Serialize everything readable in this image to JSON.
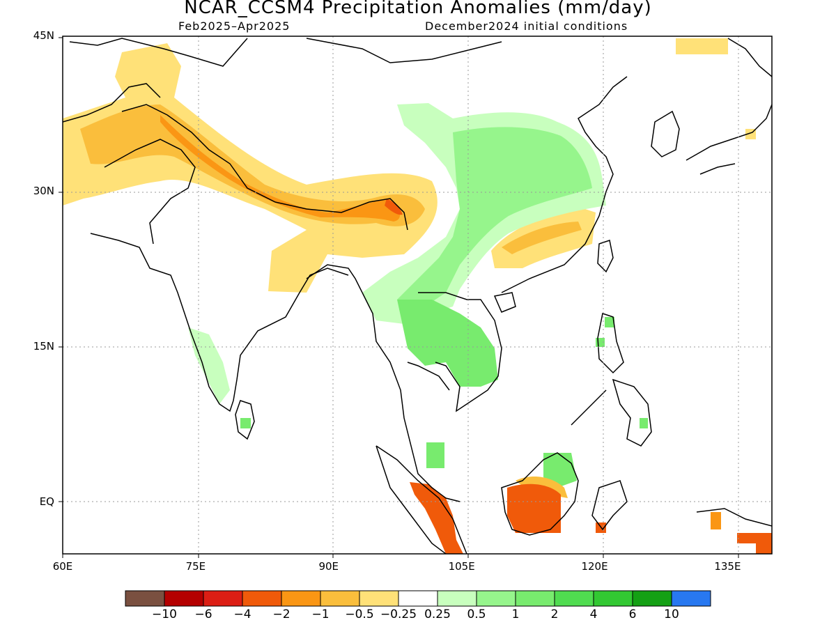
{
  "title": "NCAR_CCSM4 Precipitation Anomalies (mm/day)",
  "subtitle_period": "Feb2025–Apr2025",
  "subtitle_init": "December2024 initial conditions",
  "map": {
    "lon_range": [
      60,
      140
    ],
    "lat_range": [
      -5,
      45
    ],
    "lat_ticks": [
      {
        "value": 45,
        "label": "45N"
      },
      {
        "value": 30,
        "label": "30N"
      },
      {
        "value": 15,
        "label": "15N"
      },
      {
        "value": 0,
        "label": "EQ"
      }
    ],
    "lon_ticks": [
      {
        "value": 60,
        "label": "60E"
      },
      {
        "value": 75,
        "label": "75E"
      },
      {
        "value": 90,
        "label": "90E"
      },
      {
        "value": 105,
        "label": "105E"
      },
      {
        "value": 120,
        "label": "120E"
      },
      {
        "value": 135,
        "label": "135E"
      }
    ],
    "grid": "dotted"
  },
  "colorbar": {
    "colors": [
      "#7a5040",
      "#b40000",
      "#dc1e14",
      "#f05a0a",
      "#fa9614",
      "#fabe3c",
      "#ffe178",
      "#ffffff",
      "#c8ffbe",
      "#96f58c",
      "#78eb6e",
      "#50dc50",
      "#32c832",
      "#14a014",
      "#2878f0"
    ],
    "labels": [
      "−10",
      "−6",
      "−4",
      "−2",
      "−1",
      "−0.5",
      "−0.25",
      "0.25",
      "0.5",
      "1",
      "2",
      "4",
      "6",
      "10"
    ]
  }
}
